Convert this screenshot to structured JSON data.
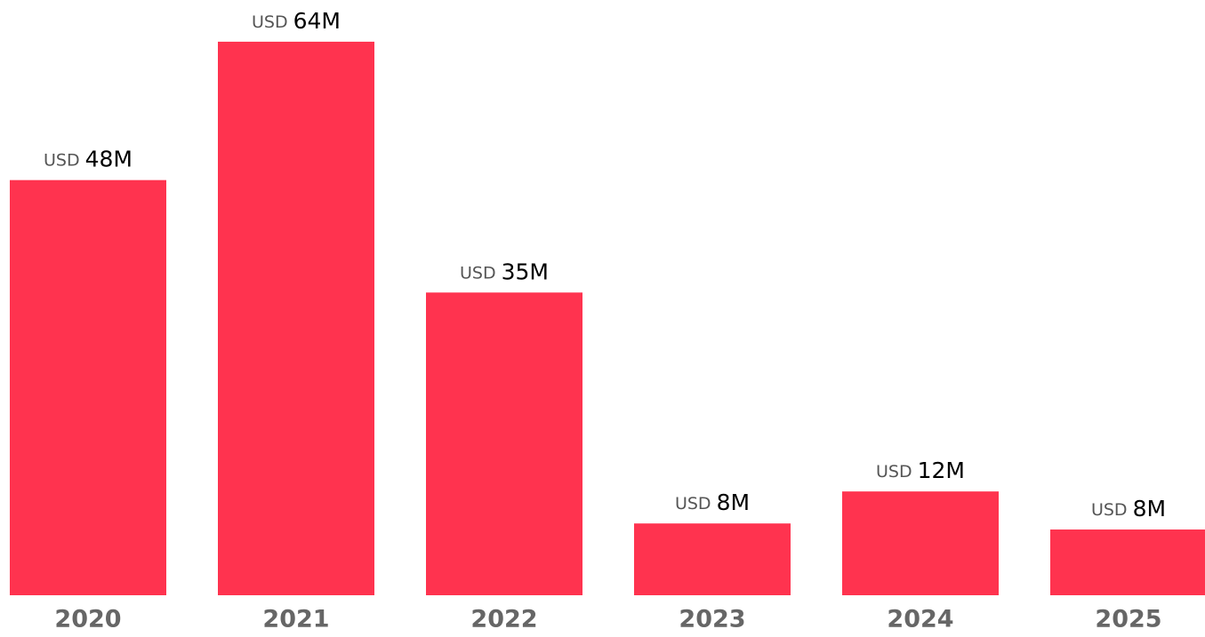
{
  "chart_data": {
    "type": "bar",
    "categories": [
      "2020",
      "2021",
      "2022",
      "2023",
      "2024",
      "2025"
    ],
    "values": [
      48,
      64,
      35,
      8.3,
      12,
      7.6
    ],
    "value_labels": [
      "48M",
      "64M",
      "35M",
      "8M",
      "12M",
      "8M"
    ],
    "value_label_prefix": "USD",
    "color": "#ff334f",
    "ylim": [
      0,
      68
    ]
  }
}
